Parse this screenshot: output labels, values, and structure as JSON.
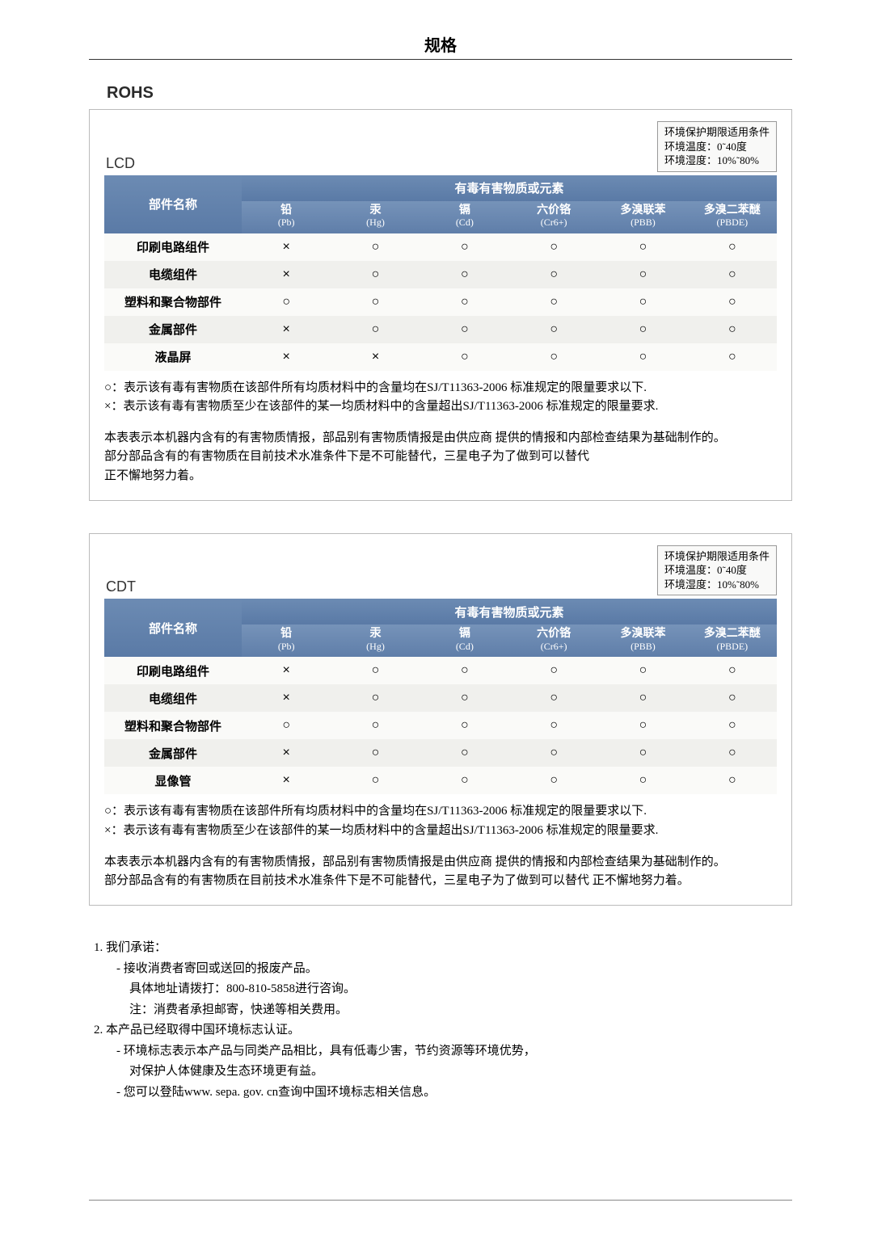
{
  "pageTitle": "规格",
  "sectionHeading": "ROHS",
  "envBox": {
    "line1": "环境保护期限适用条件",
    "line2": "环境温度：0˜40度",
    "line3": "环境湿度：10%˜80%"
  },
  "tableHeader": {
    "partName": "部件名称",
    "hazard": "有毒有害物质或元素",
    "cols": [
      {
        "zh": "铅",
        "en": "(Pb)"
      },
      {
        "zh": "汞",
        "en": "(Hg)"
      },
      {
        "zh": "镉",
        "en": "(Cd)"
      },
      {
        "zh": "六价铬",
        "en": "(Cr6+)"
      },
      {
        "zh": "多溴联苯",
        "en": "(PBB)"
      },
      {
        "zh": "多溴二苯醚",
        "en": "(PBDE)"
      }
    ]
  },
  "symbolO": "○",
  "symbolX": "×",
  "lcd": {
    "label": "LCD",
    "rows": [
      {
        "name": "印刷电路组件",
        "v": [
          "×",
          "○",
          "○",
          "○",
          "○",
          "○"
        ]
      },
      {
        "name": "电缆组件",
        "v": [
          "×",
          "○",
          "○",
          "○",
          "○",
          "○"
        ]
      },
      {
        "name": "塑料和聚合物部件",
        "v": [
          "○",
          "○",
          "○",
          "○",
          "○",
          "○"
        ]
      },
      {
        "name": "金属部件",
        "v": [
          "×",
          "○",
          "○",
          "○",
          "○",
          "○"
        ]
      },
      {
        "name": "液晶屏",
        "v": [
          "×",
          "×",
          "○",
          "○",
          "○",
          "○"
        ]
      }
    ],
    "notes": {
      "l1": "○：表示该有毒有害物质在该部件所有均质材料中的含量均在SJ/T11363-2006 标准规定的限量要求以下.",
      "l2": "×：表示该有毒有害物质至少在该部件的某一均质材料中的含量超出SJ/T11363-2006 标准规定的限量要求.",
      "l3": "本表表示本机器内含有的有害物质情报，部品别有害物质情报是由供应商 提供的情报和内部检查结果为基础制作的。",
      "l4": "部分部品含有的有害物质在目前技术水准条件下是不可能替代，三星电子为了做到可以替代",
      "l5": "正不懈地努力着。"
    }
  },
  "cdt": {
    "label": "CDT",
    "rows": [
      {
        "name": "印刷电路组件",
        "v": [
          "×",
          "○",
          "○",
          "○",
          "○",
          "○"
        ]
      },
      {
        "name": "电缆组件",
        "v": [
          "×",
          "○",
          "○",
          "○",
          "○",
          "○"
        ]
      },
      {
        "name": "塑料和聚合物部件",
        "v": [
          "○",
          "○",
          "○",
          "○",
          "○",
          "○"
        ]
      },
      {
        "name": "金属部件",
        "v": [
          "×",
          "○",
          "○",
          "○",
          "○",
          "○"
        ]
      },
      {
        "name": "显像管",
        "v": [
          "×",
          "○",
          "○",
          "○",
          "○",
          "○"
        ]
      }
    ],
    "notes": {
      "l1": "○：表示该有毒有害物质在该部件所有均质材料中的含量均在SJ/T11363-2006 标准规定的限量要求以下.",
      "l2": "×：表示该有毒有害物质至少在该部件的某一均质材料中的含量超出SJ/T11363-2006 标准规定的限量要求.",
      "l3": "本表表示本机器内含有的有害物质情报，部品别有害物质情报是由供应商 提供的情报和内部检查结果为基础制作的。",
      "l4": "部分部品含有的有害物质在目前技术水准条件下是不可能替代，三星电子为了做到可以替代 正不懈地努力着。"
    }
  },
  "footer": {
    "l1": "1. 我们承诺：",
    "l2": "- 接收消费者寄回或送回的报废产品。",
    "l3": "具体地址请拨打：800-810-5858进行咨询。",
    "l4": "注：消费者承担邮寄，快递等相关费用。",
    "l5": "2. 本产品已经取得中国环境标志认证。",
    "l6": "- 环境标志表示本产品与同类产品相比，具有低毒少害，节约资源等环境优势，",
    "l7": "对保护人体健康及生态环境更有益。",
    "l8": "- 您可以登陆www. sepa. gov. cn查询中国环境标志相关信息。"
  },
  "colors": {
    "headerGradTop": "#6c8bb3",
    "headerGradBottom": "#5a7aa6",
    "rowOdd": "#fafaf8",
    "rowEven": "#f0f0ed",
    "border": "#bbbbbb"
  }
}
